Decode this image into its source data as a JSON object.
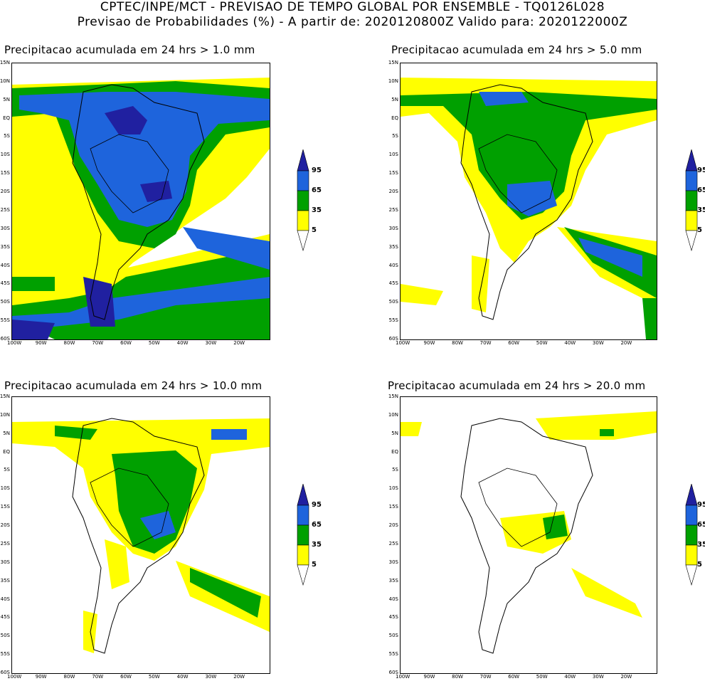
{
  "header": {
    "line1": "CPTEC/INPE/MCT - PREVISAO DE TEMPO GLOBAL POR ENSEMBLE - TQ0126L028",
    "line2": "Previsao de Probabilidades (%) -  A partir de: 2020120800Z  Valido para: 2020122000Z"
  },
  "panels": [
    {
      "title": "Precipitacao acumulada em 24 hrs > 1.0 mm"
    },
    {
      "title": "Precipitacao acumulada em 24 hrs > 5.0 mm"
    },
    {
      "title": "Precipitacao acumulada em 24 hrs > 10.0 mm"
    },
    {
      "title": "Precipitacao acumulada em 24 hrs > 20.0 mm"
    }
  ],
  "lat_ticks": [
    "15N",
    "10N",
    "5N",
    "EQ",
    "5S",
    "10S",
    "15S",
    "20S",
    "25S",
    "30S",
    "35S",
    "40S",
    "45S",
    "50S",
    "55S",
    "60S"
  ],
  "lon_ticks": [
    "100W",
    "90W",
    "80W",
    "70W",
    "60W",
    "50W",
    "40W",
    "30W",
    "20W"
  ],
  "legend": {
    "labels": [
      "95",
      "65",
      "35",
      "5"
    ],
    "colors": {
      "yellow": "#ffff00",
      "green": "#00a000",
      "blue": "#1e64dc",
      "purple": "#2020a0"
    }
  }
}
